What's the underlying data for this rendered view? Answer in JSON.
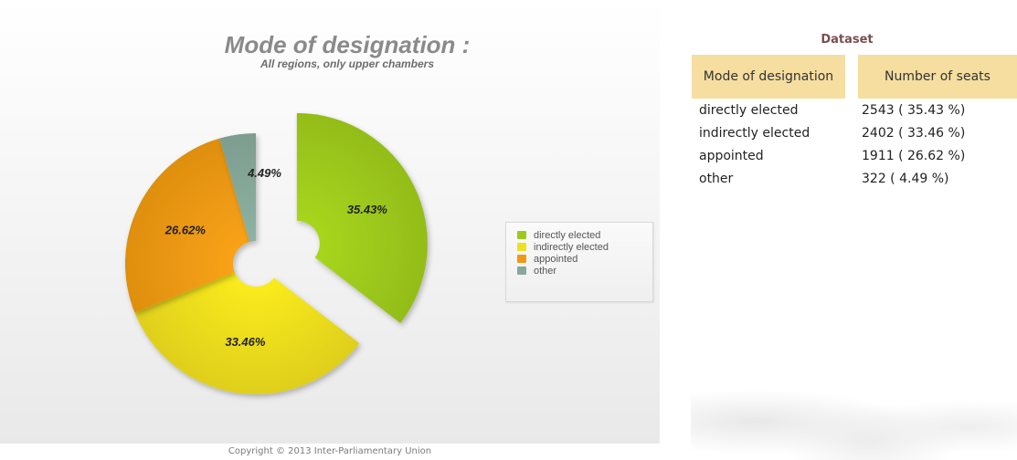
{
  "chart_data": {
    "type": "pie",
    "title": "Mode of designation :",
    "subtitle": "All regions, only upper chambers",
    "legend_position": "right",
    "slices": [
      {
        "name": "directly elected",
        "value": 35.43,
        "label": "35.43%",
        "color": "#9ecb1b",
        "exploded": true
      },
      {
        "name": "indirectly elected",
        "value": 33.46,
        "label": "33.46%",
        "color": "#f0df1c",
        "exploded": false
      },
      {
        "name": "appointed",
        "value": 26.62,
        "label": "26.62%",
        "color": "#ef9a12",
        "exploded": false
      },
      {
        "name": "other",
        "value": 4.49,
        "label": "4.49%",
        "color": "#86a99a",
        "exploded": false
      }
    ]
  },
  "copyright": "Copyright © 2013 Inter-Parliamentary Union",
  "dataset": {
    "title": "Dataset",
    "headers": [
      "Mode of designation",
      "Number of seats"
    ],
    "rows": [
      {
        "mode": "directly elected",
        "seats": "2543 ( 35.43 %)"
      },
      {
        "mode": "indirectly elected",
        "seats": "2402 ( 33.46 %)"
      },
      {
        "mode": "appointed",
        "seats": "1911 ( 26.62 %)"
      },
      {
        "mode": "other",
        "seats": "322 ( 4.49 %)"
      }
    ]
  }
}
